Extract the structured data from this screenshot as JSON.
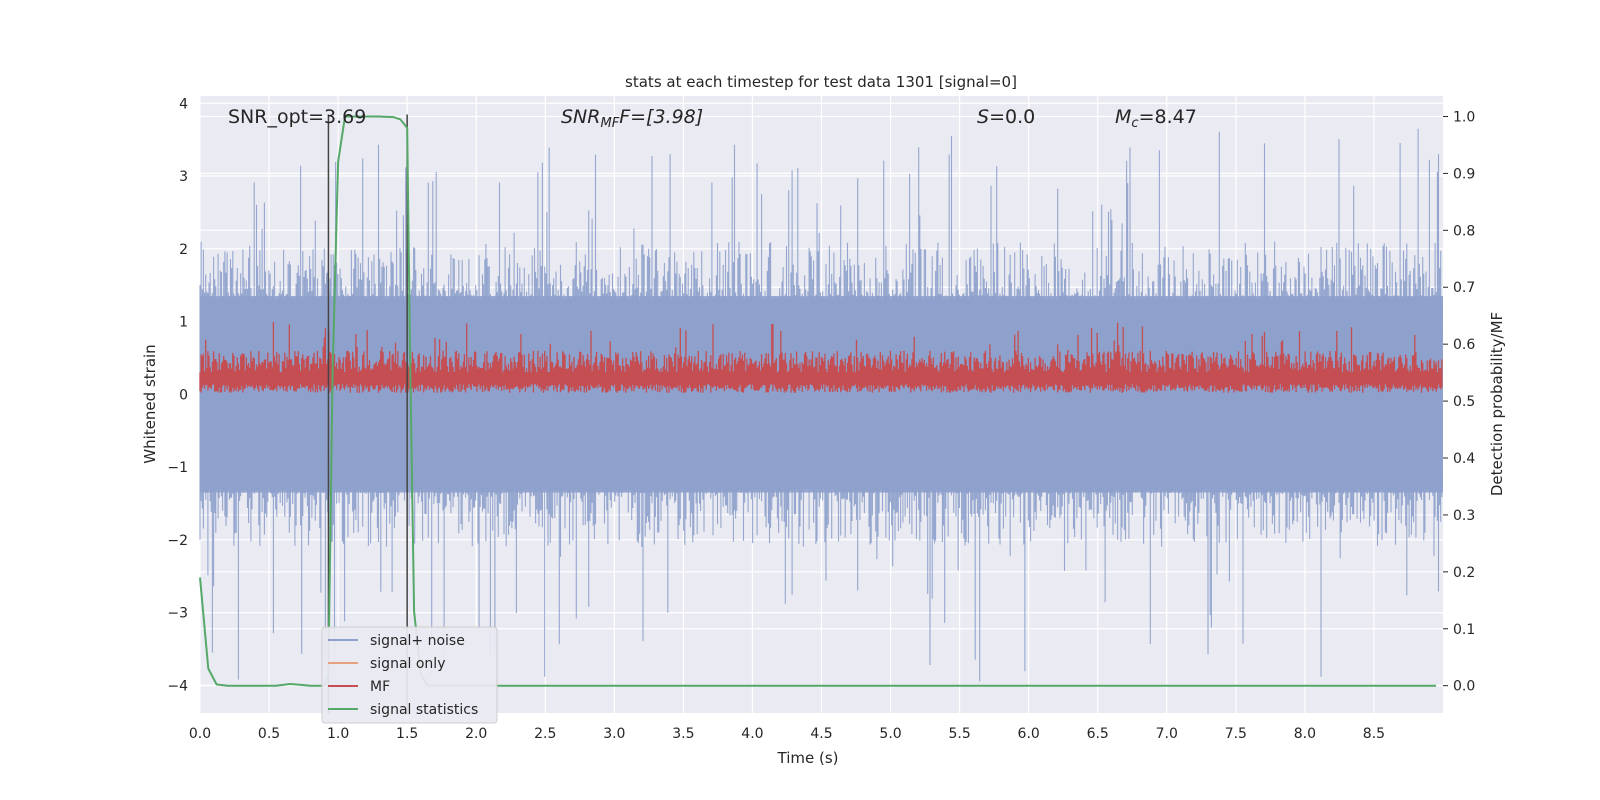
{
  "chart_data": {
    "type": "line",
    "title": "stats at each timestep for test data 1301 [signal=0]",
    "xlabel": "Time (s)",
    "ylabel": "Whitened strain",
    "ylabel_right": "Detection probability/MF",
    "xlim": [
      0.0,
      9.0
    ],
    "ylim": [
      -4.38,
      4.1
    ],
    "ylim_right": [
      -0.048,
      1.036
    ],
    "x_ticks": [
      0.0,
      0.5,
      1.0,
      1.5,
      2.0,
      2.5,
      3.0,
      3.5,
      4.0,
      4.5,
      5.0,
      5.5,
      6.0,
      6.5,
      7.0,
      7.5,
      8.0,
      8.5
    ],
    "x_tick_labels": [
      "0.0",
      "0.5",
      "1.0",
      "1.5",
      "2.0",
      "2.5",
      "3.0",
      "3.5",
      "4.0",
      "4.5",
      "5.0",
      "5.5",
      "6.0",
      "6.5",
      "7.0",
      "7.5",
      "8.0",
      "8.5"
    ],
    "y_ticks": [
      4,
      3,
      2,
      1,
      0,
      -1,
      -2,
      -3,
      -4
    ],
    "y_tick_labels": [
      "4",
      "3",
      "2",
      "1",
      "0",
      "−1",
      "−2",
      "−3",
      "−4"
    ],
    "y_right_ticks": [
      1.0,
      0.9,
      0.8,
      0.7,
      0.6,
      0.5,
      0.4,
      0.3,
      0.2,
      0.1,
      0.0
    ],
    "y_right_tick_labels": [
      "1.0",
      "0.9",
      "0.8",
      "0.7",
      "0.6",
      "0.5",
      "0.4",
      "0.3",
      "0.2",
      "0.1",
      "0.0"
    ],
    "annotations": {
      "snr_opt": "SNR_opt=3.69",
      "snr_mf_base": "SNR",
      "snr_mf_sub": "MF",
      "snr_mf_rest": "F=[3.98]",
      "s_var": "S",
      "s_rest": "=0.0",
      "mc_var": "M",
      "mc_sub": "c",
      "mc_rest": "=8.47"
    },
    "vertical_markers": [
      0.93,
      1.5
    ],
    "series": [
      {
        "name": "signal+ noise",
        "color": "#8da0cb",
        "envelope": {
          "low": -2.1,
          "high": 2.1,
          "spike_min": -4.0,
          "spike_max": 3.65
        }
      },
      {
        "name": "signal only",
        "color": "#e8a17e",
        "values": []
      },
      {
        "name": "MF",
        "color": "#c44e52",
        "envelope": {
          "low": 0.02,
          "high": 0.6,
          "spike_max": 1.0
        }
      },
      {
        "name": "signal statistics",
        "color": "#55a868",
        "axis": "right",
        "x": [
          0.0,
          0.06,
          0.12,
          0.2,
          0.35,
          0.55,
          0.65,
          0.7,
          0.8,
          0.9,
          0.93,
          0.96,
          1.0,
          1.05,
          1.1,
          1.2,
          1.3,
          1.4,
          1.45,
          1.5,
          1.52,
          1.55,
          1.6,
          1.65,
          1.7,
          2.0,
          3.0,
          4.0,
          5.0,
          6.0,
          7.0,
          8.0,
          8.95
        ],
        "y": [
          0.19,
          0.03,
          0.002,
          0.0,
          0.0,
          0.0,
          0.003,
          0.002,
          0.0,
          0.0,
          0.02,
          0.55,
          0.92,
          1.0,
          1.0,
          1.0,
          1.0,
          0.999,
          0.995,
          0.98,
          0.6,
          0.13,
          0.02,
          0.0,
          0.0,
          0.0,
          0.0,
          0.0,
          0.0,
          0.0,
          0.0,
          0.0,
          0.0
        ]
      }
    ],
    "legend_position": "lower-left",
    "grid": true,
    "colors": {
      "background": "#eaeaf2",
      "grid": "#ffffff",
      "marker": "#444444"
    }
  }
}
